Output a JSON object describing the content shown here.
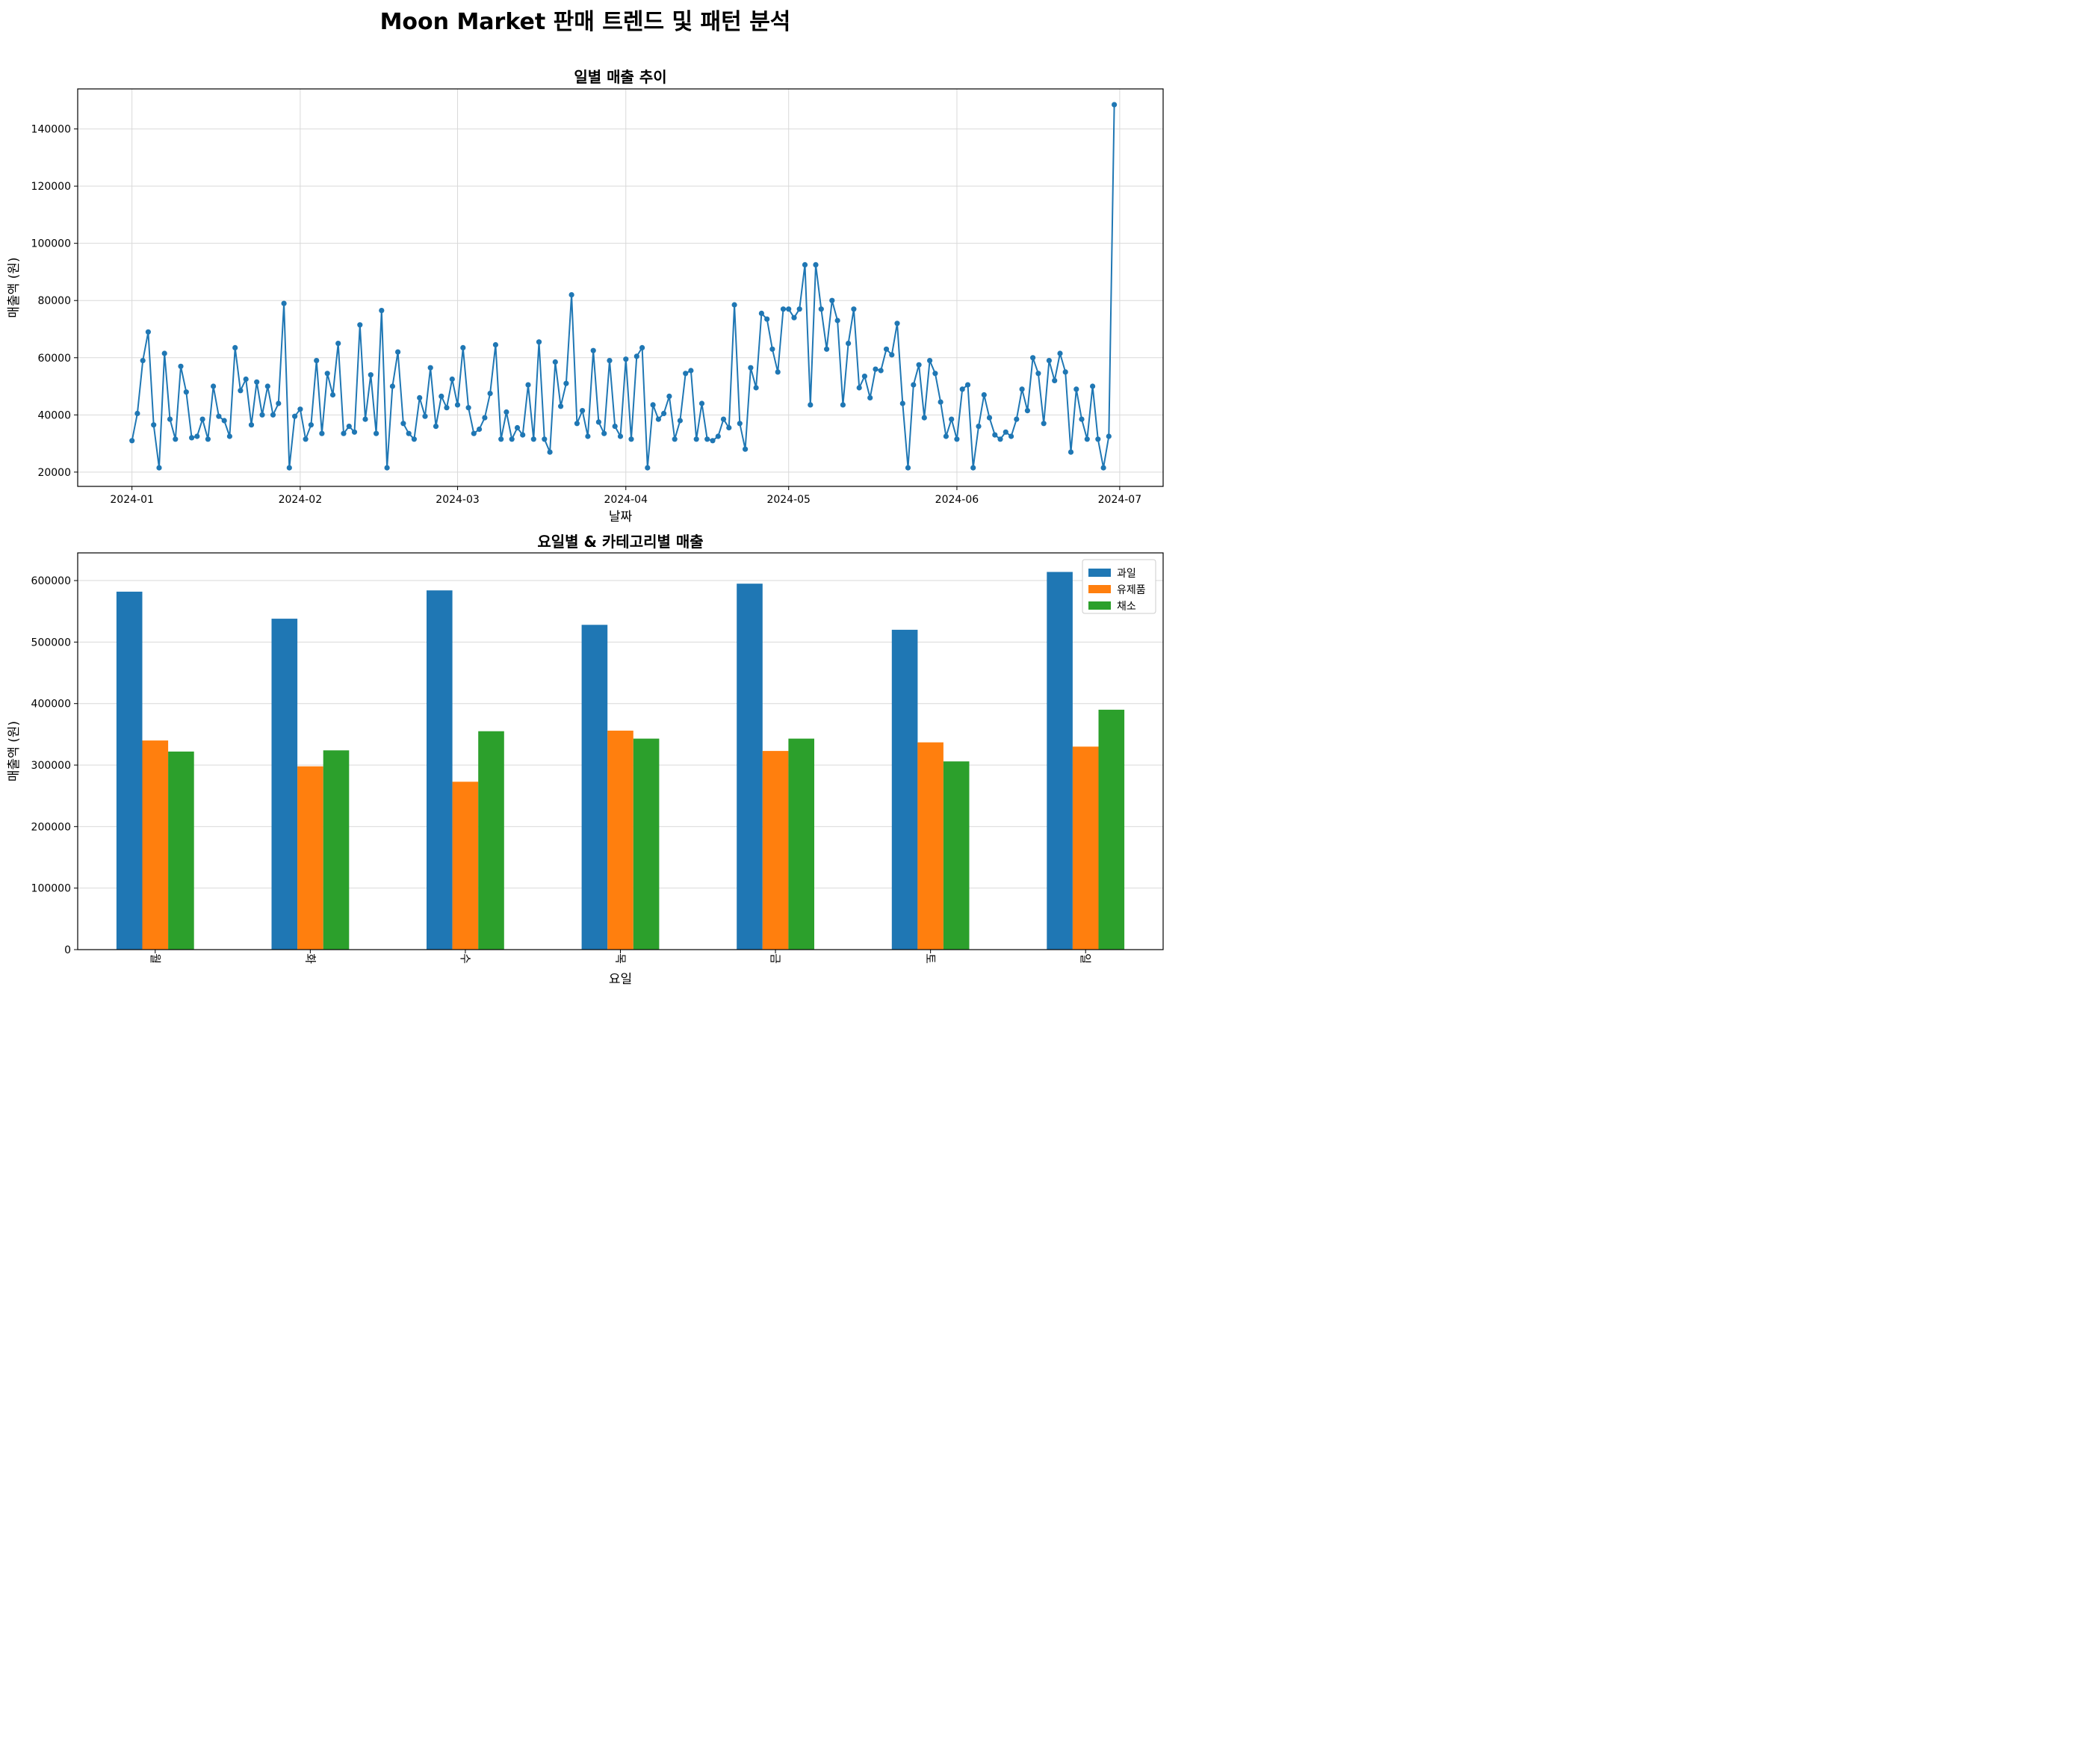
{
  "figure_title": "Moon Market 판매 트렌드 및 패턴 분석",
  "colors": {
    "line": "#1f77b4",
    "bar1": "#1f77b4",
    "bar2": "#ff7f0e",
    "bar3": "#2ca02c",
    "grid": "#d9d9d9"
  },
  "chart_data": [
    {
      "type": "line",
      "title": "일별 매출 추이",
      "xlabel": "날짜",
      "ylabel": "매출액 (원)",
      "xlim": [
        "2023-12-22",
        "2024-07-09"
      ],
      "ylim": [
        15000,
        154000
      ],
      "xticks": [
        "2024-01-01",
        "2024-02-01",
        "2024-03-01",
        "2024-04-01",
        "2024-05-01",
        "2024-06-01",
        "2024-07-01"
      ],
      "xticklabels": [
        "2024-01",
        "2024-02",
        "2024-03",
        "2024-04",
        "2024-05",
        "2024-06",
        "2024-07"
      ],
      "yticks": [
        20000,
        40000,
        60000,
        80000,
        100000,
        120000,
        140000
      ],
      "yticklabels": [
        "20000",
        "40000",
        "60000",
        "80000",
        "100000",
        "120000",
        "140000"
      ],
      "grid": true,
      "series": [
        {
          "marker": "circle",
          "x": [
            "2024-01-01",
            "2024-01-02",
            "2024-01-03",
            "2024-01-04",
            "2024-01-05",
            "2024-01-06",
            "2024-01-07",
            "2024-01-08",
            "2024-01-09",
            "2024-01-10",
            "2024-01-11",
            "2024-01-12",
            "2024-01-13",
            "2024-01-14",
            "2024-01-15",
            "2024-01-16",
            "2024-01-17",
            "2024-01-18",
            "2024-01-19",
            "2024-01-20",
            "2024-01-21",
            "2024-01-22",
            "2024-01-23",
            "2024-01-24",
            "2024-01-25",
            "2024-01-26",
            "2024-01-27",
            "2024-01-28",
            "2024-01-29",
            "2024-01-30",
            "2024-01-31",
            "2024-02-01",
            "2024-02-02",
            "2024-02-03",
            "2024-02-04",
            "2024-02-05",
            "2024-02-06",
            "2024-02-07",
            "2024-02-08",
            "2024-02-09",
            "2024-02-10",
            "2024-02-11",
            "2024-02-12",
            "2024-02-13",
            "2024-02-14",
            "2024-02-15",
            "2024-02-16",
            "2024-02-17",
            "2024-02-18",
            "2024-02-19",
            "2024-02-20",
            "2024-02-21",
            "2024-02-22",
            "2024-02-23",
            "2024-02-24",
            "2024-02-25",
            "2024-02-26",
            "2024-02-27",
            "2024-02-28",
            "2024-02-29",
            "2024-03-01",
            "2024-03-02",
            "2024-03-03",
            "2024-03-04",
            "2024-03-05",
            "2024-03-06",
            "2024-03-07",
            "2024-03-08",
            "2024-03-09",
            "2024-03-10",
            "2024-03-11",
            "2024-03-12",
            "2024-03-13",
            "2024-03-14",
            "2024-03-15",
            "2024-03-16",
            "2024-03-17",
            "2024-03-18",
            "2024-03-19",
            "2024-03-20",
            "2024-03-21",
            "2024-03-22",
            "2024-03-23",
            "2024-03-24",
            "2024-03-25",
            "2024-03-26",
            "2024-03-27",
            "2024-03-28",
            "2024-03-29",
            "2024-03-30",
            "2024-03-31",
            "2024-04-01",
            "2024-04-02",
            "2024-04-03",
            "2024-04-04",
            "2024-04-05",
            "2024-04-06",
            "2024-04-07",
            "2024-04-08",
            "2024-04-09",
            "2024-04-10",
            "2024-04-11",
            "2024-04-12",
            "2024-04-13",
            "2024-04-14",
            "2024-04-15",
            "2024-04-16",
            "2024-04-17",
            "2024-04-18",
            "2024-04-19",
            "2024-04-20",
            "2024-04-21",
            "2024-04-22",
            "2024-04-23",
            "2024-04-24",
            "2024-04-25",
            "2024-04-26",
            "2024-04-27",
            "2024-04-28",
            "2024-04-29",
            "2024-04-30",
            "2024-05-01",
            "2024-05-02",
            "2024-05-03",
            "2024-05-04",
            "2024-05-05",
            "2024-05-06",
            "2024-05-07",
            "2024-05-08",
            "2024-05-09",
            "2024-05-10",
            "2024-05-11",
            "2024-05-12",
            "2024-05-13",
            "2024-05-14",
            "2024-05-15",
            "2024-05-16",
            "2024-05-17",
            "2024-05-18",
            "2024-05-19",
            "2024-05-20",
            "2024-05-21",
            "2024-05-22",
            "2024-05-23",
            "2024-05-24",
            "2024-05-25",
            "2024-05-26",
            "2024-05-27",
            "2024-05-28",
            "2024-05-29",
            "2024-05-30",
            "2024-05-31",
            "2024-06-01",
            "2024-06-02",
            "2024-06-03",
            "2024-06-04",
            "2024-06-05",
            "2024-06-06",
            "2024-06-07",
            "2024-06-08",
            "2024-06-09",
            "2024-06-10",
            "2024-06-11",
            "2024-06-12",
            "2024-06-13",
            "2024-06-14",
            "2024-06-15",
            "2024-06-16",
            "2024-06-17",
            "2024-06-18",
            "2024-06-19",
            "2024-06-20",
            "2024-06-21",
            "2024-06-22",
            "2024-06-23",
            "2024-06-24",
            "2024-06-25",
            "2024-06-26",
            "2024-06-27",
            "2024-06-28",
            "2024-06-29",
            "2024-06-30"
          ],
          "values": [
            31000,
            40500,
            59000,
            69000,
            36500,
            21500,
            61500,
            38500,
            31500,
            57000,
            48000,
            32000,
            32500,
            38500,
            31500,
            50000,
            39500,
            38000,
            32500,
            63500,
            48500,
            52500,
            36500,
            51500,
            40000,
            50000,
            40000,
            44000,
            79000,
            21500,
            39500,
            42000,
            31500,
            36500,
            59000,
            33500,
            54500,
            47000,
            65000,
            33500,
            36000,
            34000,
            71500,
            38500,
            54000,
            33500,
            76500,
            21500,
            50000,
            62000,
            37000,
            33500,
            31500,
            46000,
            39500,
            56500,
            36000,
            46500,
            42500,
            52500,
            43500,
            63500,
            42500,
            33500,
            35000,
            39000,
            47500,
            64500,
            31500,
            41000,
            31500,
            35500,
            33000,
            50500,
            31500,
            65500,
            31500,
            27000,
            58500,
            43000,
            51000,
            82000,
            37000,
            41500,
            32500,
            62500,
            37500,
            33500,
            59000,
            36000,
            32500,
            59500,
            31500,
            60500,
            63500,
            21500,
            43500,
            38500,
            40500,
            46500,
            31500,
            38000,
            54500,
            55500,
            31500,
            44000,
            31500,
            31000,
            32500,
            38500,
            35500,
            78500,
            37000,
            28000,
            56500,
            49500,
            75500,
            73500,
            63000,
            55000,
            77000,
            77000,
            74000,
            77000,
            92500,
            43500,
            92500,
            77000,
            63000,
            80000,
            73000,
            43500,
            65000,
            77000,
            49500,
            53500,
            46000,
            56000,
            55500,
            63000,
            61000,
            72000,
            44000,
            21500,
            50500,
            57500,
            39000,
            59000,
            54500,
            44500,
            32500,
            38500,
            31500,
            49000,
            50500,
            21500,
            36000,
            47000,
            39000,
            33000,
            31500,
            34000,
            32500,
            38500,
            49000,
            41500,
            60000,
            54500,
            37000,
            59000,
            52000,
            61500,
            55000,
            27000,
            49000,
            38500,
            31500,
            50000,
            31500,
            21500,
            32500,
            148500
          ]
        }
      ]
    },
    {
      "type": "bar",
      "title": "요일별 & 카테고리별 매출",
      "xlabel": "요일",
      "ylabel": "매출액 (원)",
      "ylim": [
        0,
        645000
      ],
      "yticks": [
        0,
        100000,
        200000,
        300000,
        400000,
        500000,
        600000
      ],
      "yticklabels": [
        "0",
        "100000",
        "200000",
        "300000",
        "400000",
        "500000",
        "600000"
      ],
      "categories": [
        "월",
        "화",
        "수",
        "목",
        "금",
        "토",
        "일"
      ],
      "legend_position": "top-right",
      "grid": true,
      "series": [
        {
          "name": "과일",
          "values": [
            582000,
            538000,
            584000,
            528000,
            595000,
            520000,
            614000
          ]
        },
        {
          "name": "유제품",
          "values": [
            340000,
            298000,
            273000,
            356000,
            323000,
            337000,
            330000
          ]
        },
        {
          "name": "채소",
          "values": [
            322000,
            324000,
            355000,
            343000,
            343000,
            306000,
            390000
          ]
        }
      ]
    }
  ]
}
